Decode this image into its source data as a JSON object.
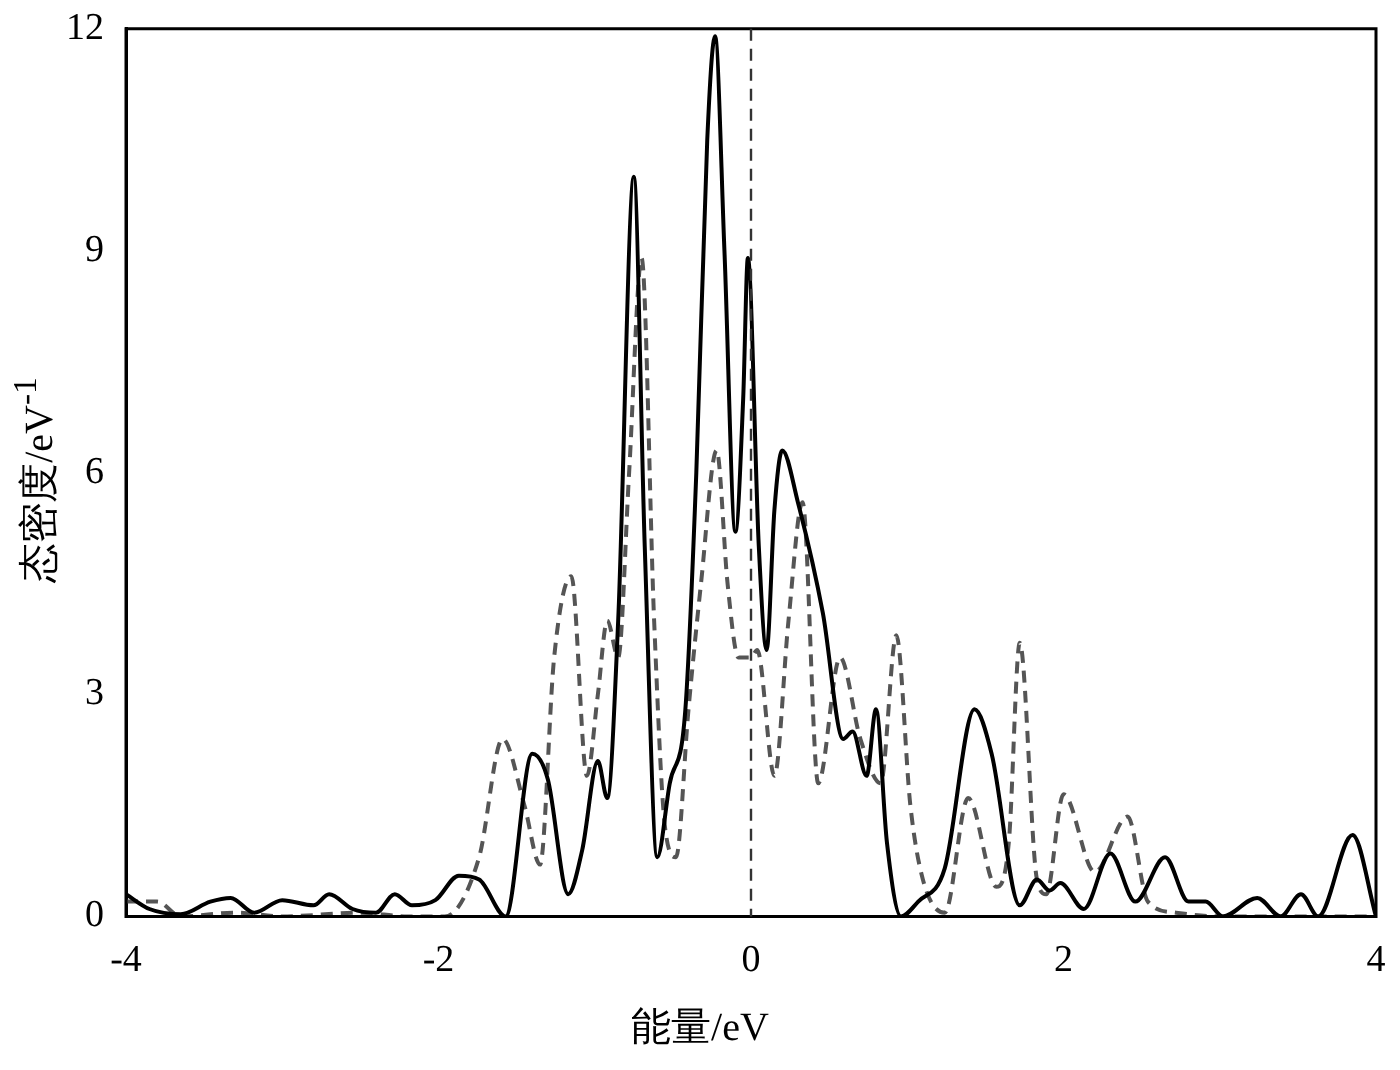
{
  "chart_data": {
    "type": "line",
    "xlabel": "能量/eV",
    "ylabel": "态密度/eV$^{-1}$",
    "xlim": [
      -4,
      4
    ],
    "xticks": [
      -4,
      -2,
      0,
      2,
      4
    ],
    "ylim": [
      0,
      12
    ],
    "yticks": [
      0,
      3,
      6,
      9,
      12
    ],
    "grid": false,
    "legend": false,
    "marker": "none",
    "series": [
      {
        "color": "#000000",
        "line_style": "solid",
        "x": [
          -4,
          -3.85,
          -3.65,
          -3.46,
          -3.33,
          -3.18,
          -3,
          -2.8,
          -2.7,
          -2.55,
          -2.4,
          -2.28,
          -2.17,
          -2.02,
          -1.87,
          -1.74,
          -1.57,
          -1.4,
          -1.3,
          -1.17,
          -1.08,
          -0.98,
          -0.92,
          -0.85,
          -0.75,
          -0.68,
          -0.6,
          -0.52,
          -0.42,
          -0.35,
          -0.28,
          -0.23,
          -0.17,
          -0.1,
          -0.05,
          -0.02,
          0.05,
          0.1,
          0.15,
          0.2,
          0.3,
          0.46,
          0.59,
          0.65,
          0.74,
          0.8,
          0.87,
          0.96,
          1.07,
          1.24,
          1.43,
          1.54,
          1.72,
          1.83,
          1.91,
          1.98,
          2.13,
          2.3,
          2.46,
          2.65,
          2.8,
          2.91,
          3.02,
          3.24,
          3.39,
          3.52,
          3.63,
          3.85,
          4
        ],
        "values": [
          0.3,
          0.1,
          0.03,
          0.2,
          0.25,
          0.05,
          0.22,
          0.15,
          0.3,
          0.1,
          0.05,
          0.3,
          0.15,
          0.22,
          0.55,
          0.5,
          0,
          2.2,
          1.85,
          0.3,
          0.9,
          2.1,
          1.6,
          4,
          10,
          5,
          0.8,
          1.8,
          2.8,
          6,
          10.5,
          11.9,
          9,
          5.2,
          7,
          8.9,
          5,
          3.6,
          5.5,
          6.3,
          5.6,
          4.1,
          2.4,
          2.5,
          1.9,
          2.8,
          1,
          0,
          0.2,
          0.65,
          2.8,
          2.2,
          0.15,
          0.5,
          0.35,
          0.45,
          0.1,
          0.85,
          0.2,
          0.8,
          0.2,
          0.2,
          0,
          0.25,
          0,
          0.3,
          0,
          1.1,
          0
        ]
      },
      {
        "color": "#555555",
        "line_style": "dashed",
        "x": [
          -4,
          -3.8,
          -3.65,
          -3.3,
          -3,
          -2.5,
          -2.2,
          -1.96,
          -1.74,
          -1.59,
          -1.45,
          -1.35,
          -1.26,
          -1.15,
          -1.05,
          -0.98,
          -0.92,
          -0.85,
          -0.78,
          -0.7,
          -0.62,
          -0.55,
          -0.48,
          -0.4,
          -0.32,
          -0.22,
          -0.15,
          -0.08,
          0,
          0.04,
          0.15,
          0.24,
          0.33,
          0.43,
          0.57,
          0.7,
          0.83,
          0.93,
          1.02,
          1.1,
          1.24,
          1.39,
          1.57,
          1.65,
          1.72,
          1.83,
          1.89,
          2,
          2.2,
          2.41,
          2.54,
          2.72,
          3,
          4
        ],
        "values": [
          0.2,
          0.2,
          0,
          0.05,
          0,
          0.05,
          0,
          0,
          0.8,
          2.4,
          1.5,
          0.7,
          3.5,
          4.6,
          1.9,
          3,
          4,
          3.5,
          6,
          8.9,
          4,
          1.2,
          0.8,
          2.8,
          4.5,
          6.3,
          4.5,
          3.5,
          3.5,
          3.6,
          1.9,
          4,
          5.6,
          1.8,
          3.5,
          2.4,
          1.8,
          3.8,
          1.5,
          0.5,
          0.05,
          1.6,
          0.4,
          1,
          3.7,
          0.5,
          0.3,
          1.65,
          0.6,
          1.35,
          0.2,
          0.05,
          0,
          0
        ]
      }
    ],
    "ref_lines": [
      {
        "axis": "x",
        "value": 0,
        "line_style": "dashed",
        "color": "#333333"
      }
    ]
  }
}
